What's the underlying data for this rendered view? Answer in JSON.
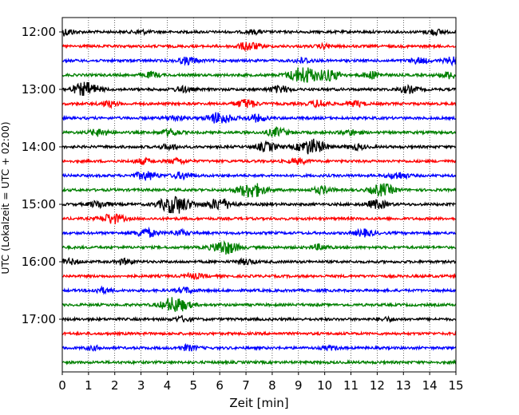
{
  "chart_data": {
    "type": "line",
    "title": "",
    "xlabel": "Zeit  [min]",
    "ylabel": "UTC (Lokalzeit = UTC + 02:00)",
    "xlim": [
      0,
      15
    ],
    "x_ticks": [
      "0",
      "1",
      "2",
      "3",
      "4",
      "5",
      "6",
      "7",
      "8",
      "9",
      "10",
      "11",
      "12",
      "13",
      "14",
      "15"
    ],
    "y_tick_labels": [
      "12:00",
      "13:00",
      "14:00",
      "15:00",
      "16:00",
      "17:00"
    ],
    "grid": "vertical dotted at each minute",
    "trace_interval_minutes": 15,
    "color_cycle": [
      "#000000",
      "#ff0000",
      "#0000ff",
      "#008000"
    ],
    "series": [
      {
        "start": "12:00",
        "color": "#000000",
        "events": [
          [
            0.1,
            4
          ],
          [
            3.0,
            2
          ],
          [
            7.3,
            2
          ],
          [
            14.2,
            3
          ]
        ]
      },
      {
        "start": "12:15",
        "color": "#ff0000",
        "events": [
          [
            7.1,
            5
          ],
          [
            10.0,
            2
          ]
        ]
      },
      {
        "start": "12:30",
        "color": "#0000ff",
        "events": [
          [
            4.8,
            4
          ],
          [
            9.2,
            3
          ],
          [
            13.6,
            3
          ],
          [
            15.0,
            5
          ]
        ]
      },
      {
        "start": "12:45",
        "color": "#008000",
        "events": [
          [
            3.4,
            3
          ],
          [
            9.2,
            10
          ],
          [
            10.2,
            6
          ],
          [
            11.8,
            4
          ],
          [
            14.8,
            4
          ]
        ]
      },
      {
        "start": "13:00",
        "color": "#000000",
        "events": [
          [
            0.9,
            8
          ],
          [
            4.6,
            3
          ],
          [
            8.3,
            4
          ],
          [
            13.2,
            4
          ]
        ]
      },
      {
        "start": "13:15",
        "color": "#ff0000",
        "events": [
          [
            1.8,
            3
          ],
          [
            7.0,
            5
          ],
          [
            9.8,
            4
          ],
          [
            11.2,
            3
          ]
        ]
      },
      {
        "start": "13:30",
        "color": "#0000ff",
        "events": [
          [
            4.3,
            3
          ],
          [
            6.0,
            7
          ],
          [
            7.4,
            4
          ]
        ]
      },
      {
        "start": "13:45",
        "color": "#008000",
        "events": [
          [
            1.4,
            4
          ],
          [
            4.1,
            4
          ],
          [
            8.2,
            5
          ],
          [
            11.0,
            3
          ]
        ]
      },
      {
        "start": "14:00",
        "color": "#000000",
        "events": [
          [
            4.1,
            3
          ],
          [
            7.8,
            5
          ],
          [
            9.5,
            9
          ],
          [
            11.2,
            3
          ]
        ]
      },
      {
        "start": "14:15",
        "color": "#ff0000",
        "events": [
          [
            3.1,
            3
          ],
          [
            4.4,
            3
          ],
          [
            9.0,
            3
          ]
        ]
      },
      {
        "start": "14:30",
        "color": "#0000ff",
        "events": [
          [
            3.2,
            5
          ],
          [
            4.6,
            4
          ],
          [
            12.8,
            4
          ]
        ]
      },
      {
        "start": "14:45",
        "color": "#008000",
        "events": [
          [
            7.2,
            9
          ],
          [
            9.9,
            4
          ],
          [
            12.2,
            7
          ]
        ]
      },
      {
        "start": "15:00",
        "color": "#000000",
        "events": [
          [
            1.4,
            4
          ],
          [
            4.3,
            11
          ],
          [
            6.0,
            7
          ],
          [
            12.0,
            5
          ]
        ]
      },
      {
        "start": "15:15",
        "color": "#ff0000",
        "events": [
          [
            1.9,
            6
          ]
        ]
      },
      {
        "start": "15:30",
        "color": "#0000ff",
        "events": [
          [
            3.2,
            5
          ],
          [
            4.5,
            3
          ],
          [
            11.5,
            4
          ]
        ]
      },
      {
        "start": "15:45",
        "color": "#008000",
        "events": [
          [
            6.2,
            8
          ],
          [
            9.8,
            3
          ]
        ]
      },
      {
        "start": "16:00",
        "color": "#000000",
        "events": [
          [
            0.3,
            3
          ],
          [
            2.4,
            3
          ],
          [
            7.0,
            3
          ]
        ]
      },
      {
        "start": "16:15",
        "color": "#ff0000",
        "events": [
          [
            5.0,
            3
          ]
        ]
      },
      {
        "start": "16:30",
        "color": "#0000ff",
        "events": [
          [
            1.5,
            3
          ],
          [
            4.7,
            3
          ]
        ]
      },
      {
        "start": "16:45",
        "color": "#008000",
        "events": [
          [
            4.3,
            9
          ]
        ]
      },
      {
        "start": "17:00",
        "color": "#000000",
        "events": [
          [
            4.6,
            3
          ],
          [
            12.4,
            2
          ]
        ]
      },
      {
        "start": "17:15",
        "color": "#ff0000",
        "events": []
      },
      {
        "start": "17:30",
        "color": "#0000ff",
        "events": [
          [
            1.2,
            2
          ],
          [
            4.8,
            3
          ],
          [
            10.2,
            2
          ]
        ]
      },
      {
        "start": "17:45",
        "color": "#008000",
        "events": []
      }
    ]
  }
}
